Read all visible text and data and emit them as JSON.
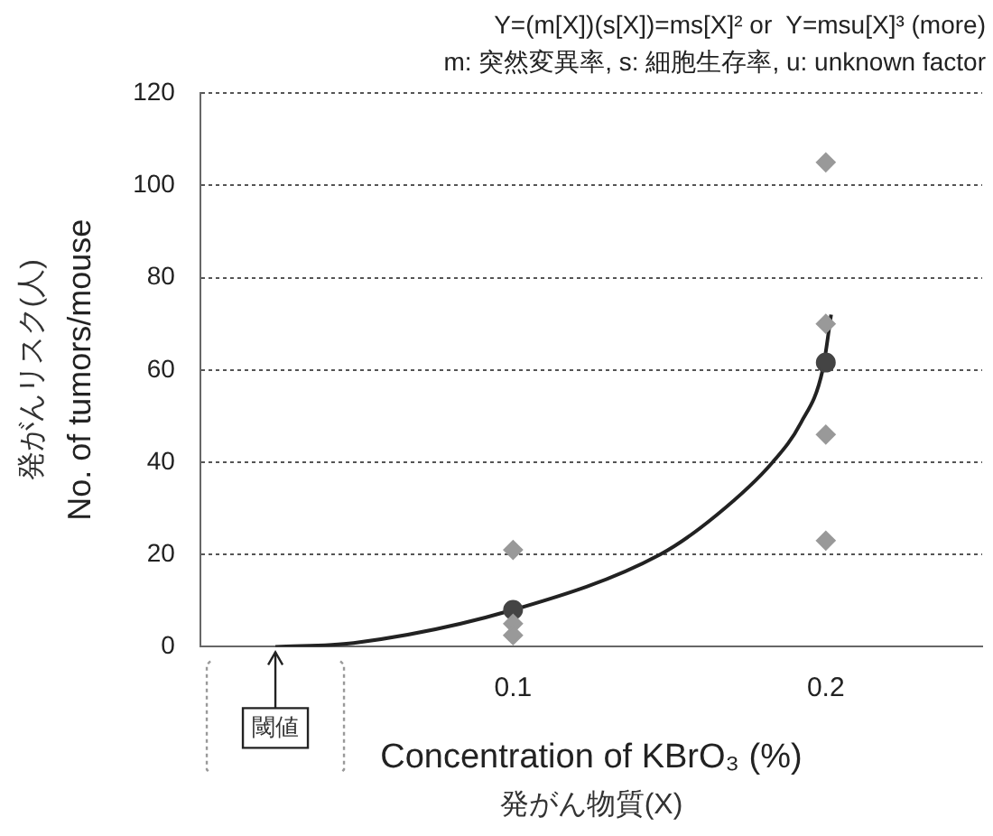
{
  "chart_data": {
    "type": "scatter",
    "title": "Y=(m[X])(s[X])=ms[X]² or  Y=msu[X]³ (more)",
    "subtitle": "m: 突然変異率, s: 細胞生存率, u: unknown factor",
    "xlabel": "Concentration of KBrO₃ (%)",
    "ylabel": "No. of tumors/mouse",
    "annotations": [
      "発がんリスク(人)",
      "発がん物質(X)",
      {
        "text": "閾値",
        "x": 0.024,
        "y": 0
      }
    ],
    "xlim": [
      0,
      0.25
    ],
    "xticks": [
      0.1,
      0.2
    ],
    "ylim": [
      0,
      120
    ],
    "yticks": [
      0,
      20,
      40,
      60,
      80,
      100,
      120
    ],
    "grid": "y",
    "legend": false,
    "series": [
      {
        "marker": "diamond",
        "color": "#999999",
        "x": [
          0.1,
          0.1,
          0.1,
          0.2,
          0.2,
          0.2,
          0.2
        ],
        "values": [
          21,
          5,
          2.5,
          105,
          70,
          46,
          23
        ]
      },
      {
        "marker": "circle",
        "color": "#444444",
        "x": [
          0.1,
          0.2
        ],
        "values": [
          8,
          61.6
        ]
      },
      {
        "type": "line",
        "marker": "none",
        "line_style": "solid",
        "color": "#222222",
        "x": [
          0.024,
          0.049,
          0.1,
          0.147,
          0.165,
          0.183,
          0.192,
          0.199,
          0.2017
        ],
        "values": [
          0,
          0.8,
          8,
          20,
          28.5,
          40,
          48.5,
          60,
          72
        ]
      }
    ]
  }
}
